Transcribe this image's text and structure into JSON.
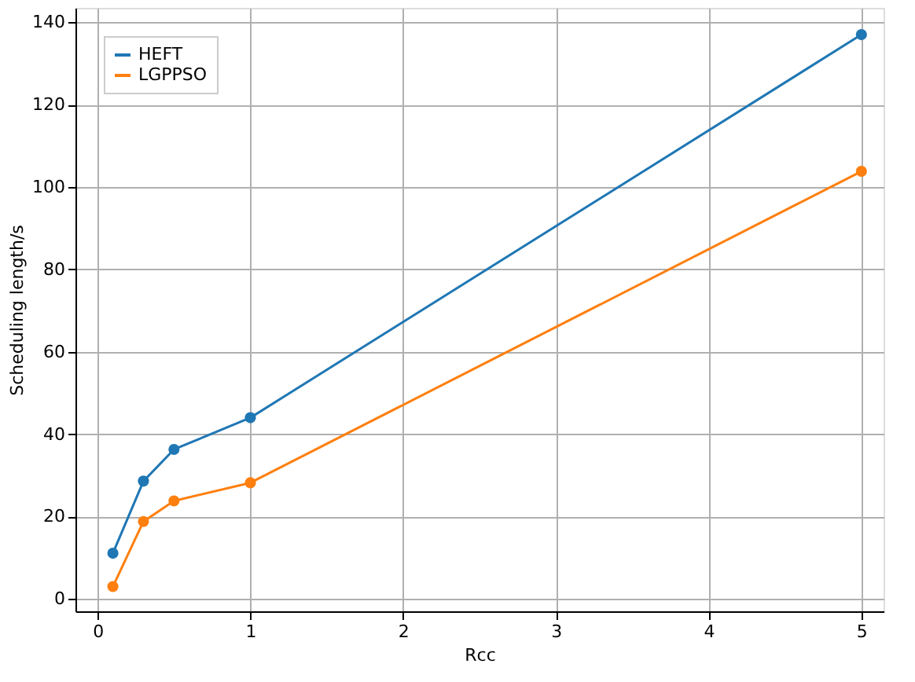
{
  "chart_data": {
    "type": "line",
    "xlabel": "Rcc",
    "ylabel": "Scheduling length/s",
    "xlim": [
      -0.145,
      5.145
    ],
    "ylim": [
      -3,
      143.5
    ],
    "xticks": [
      0,
      1,
      2,
      3,
      4,
      5
    ],
    "yticks": [
      0,
      20,
      40,
      60,
      80,
      100,
      120,
      140
    ],
    "x": [
      0.1,
      0.3,
      0.5,
      1,
      5
    ],
    "series": [
      {
        "name": "HEFT",
        "color": "#1f77b4",
        "values": [
          11.1,
          28.6,
          36.3,
          44.0,
          137
        ]
      },
      {
        "name": "LGPPSO",
        "color": "#ff7f0e",
        "values": [
          3.0,
          18.8,
          23.8,
          28.2,
          103.8
        ]
      }
    ],
    "grid": true,
    "legend": "top left",
    "marker": "circle",
    "line_style": "solid"
  }
}
